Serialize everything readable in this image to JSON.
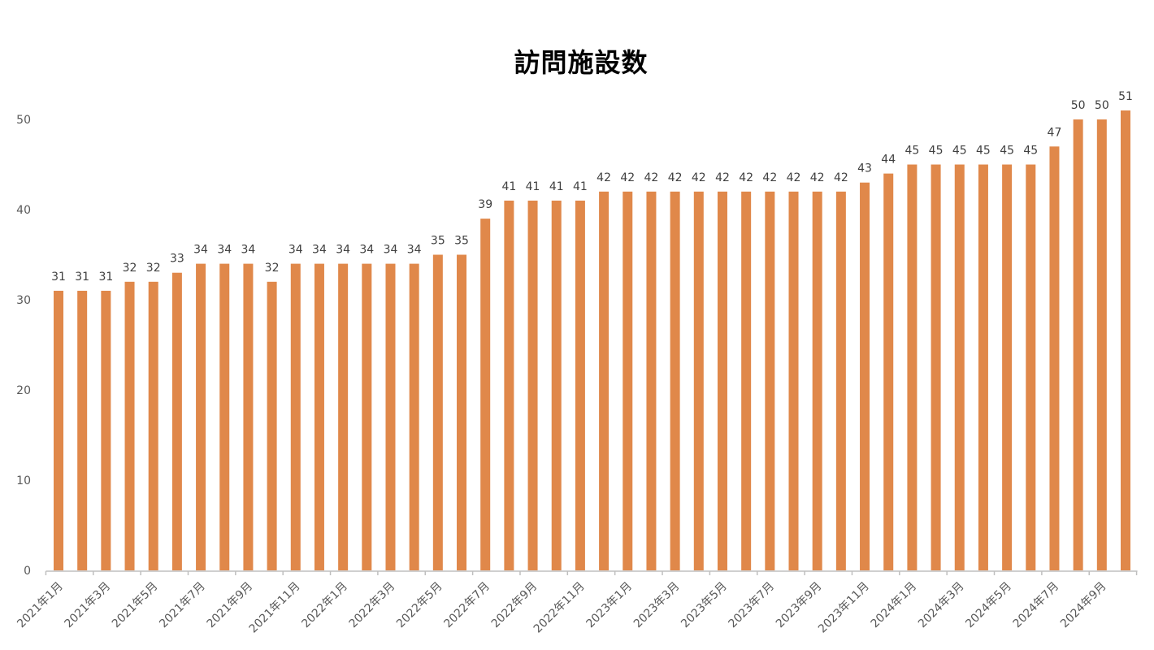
{
  "chart_data": {
    "type": "bar",
    "title": "訪問施設数",
    "xlabel": "",
    "ylabel": "",
    "ylim": [
      0,
      50
    ],
    "yticks": [
      0,
      10,
      20,
      30,
      40,
      50
    ],
    "grid": false,
    "legend": null,
    "bar_color": "#E0884A",
    "categories": [
      "2021年1月",
      "2021年2月",
      "2021年3月",
      "2021年4月",
      "2021年5月",
      "2021年6月",
      "2021年7月",
      "2021年8月",
      "2021年9月",
      "2021年10月",
      "2021年11月",
      "2021年12月",
      "2022年1月",
      "2022年2月",
      "2022年3月",
      "2022年4月",
      "2022年5月",
      "2022年6月",
      "2022年7月",
      "2022年8月",
      "2022年9月",
      "2022年10月",
      "2022年11月",
      "2022年12月",
      "2023年1月",
      "2023年2月",
      "2023年3月",
      "2023年4月",
      "2023年5月",
      "2023年6月",
      "2023年7月",
      "2023年8月",
      "2023年9月",
      "2023年10月",
      "2023年11月",
      "2023年12月",
      "2024年1月",
      "2024年2月",
      "2024年3月",
      "2024年4月",
      "2024年5月",
      "2024年6月",
      "2024年7月",
      "2024年8月",
      "2024年9月",
      "2024年10月"
    ],
    "visible_xtick_labels": [
      "2021年1月",
      "2021年3月",
      "2021年5月",
      "2021年7月",
      "2021年9月",
      "2021年11月",
      "2022年1月",
      "2022年3月",
      "2022年5月",
      "2022年7月",
      "2022年9月",
      "2022年11月",
      "2023年1月",
      "2023年3月",
      "2023年5月",
      "2023年7月",
      "2023年9月",
      "2023年11月",
      "2024年1月",
      "2024年3月",
      "2024年5月",
      "2024年7月",
      "2024年9月"
    ],
    "values": [
      31,
      31,
      31,
      32,
      32,
      33,
      34,
      34,
      34,
      32,
      34,
      34,
      34,
      34,
      34,
      34,
      35,
      35,
      39,
      41,
      41,
      41,
      41,
      42,
      42,
      42,
      42,
      42,
      42,
      42,
      42,
      42,
      42,
      42,
      43,
      44,
      45,
      45,
      45,
      45,
      45,
      45,
      47,
      50,
      50,
      51
    ],
    "data_labels": true
  }
}
